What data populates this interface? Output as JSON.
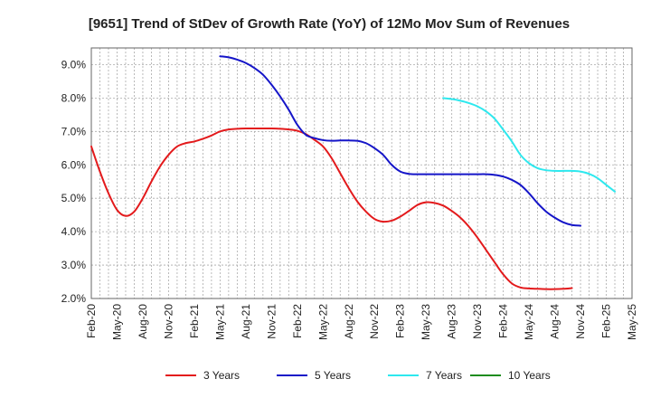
{
  "chart_data": {
    "type": "line",
    "title": "[9651]  Trend of StDev of Growth Rate (YoY) of 12Mo Mov Sum of Revenues",
    "xlabel": "",
    "ylabel": "",
    "ylim": [
      2.0,
      9.5
    ],
    "y_ticks": [
      "2.0%",
      "3.0%",
      "4.0%",
      "5.0%",
      "6.0%",
      "7.0%",
      "8.0%",
      "9.0%"
    ],
    "y_tick_values": [
      2,
      3,
      4,
      5,
      6,
      7,
      8,
      9
    ],
    "x_tick_labels": [
      "Feb-20",
      "May-20",
      "Aug-20",
      "Nov-20",
      "Feb-21",
      "May-21",
      "Aug-21",
      "Nov-21",
      "Feb-22",
      "May-22",
      "Aug-22",
      "Nov-22",
      "Feb-23",
      "May-23",
      "Aug-23",
      "Nov-23",
      "Feb-24",
      "May-24",
      "Aug-24",
      "Nov-24",
      "Feb-25",
      "May-25"
    ],
    "x_range": [
      0,
      63
    ],
    "grid": true,
    "legend_position": "bottom",
    "series": [
      {
        "name": "3 Years",
        "color": "#e31a1c",
        "start_index": 0,
        "values": [
          6.55,
          5.8,
          5.15,
          4.65,
          4.47,
          4.6,
          5.0,
          5.5,
          5.95,
          6.3,
          6.55,
          6.65,
          6.7,
          6.78,
          6.88,
          7.0,
          7.06,
          7.08,
          7.09,
          7.09,
          7.09,
          7.09,
          7.08,
          7.06,
          7.02,
          6.92,
          6.75,
          6.55,
          6.2,
          5.75,
          5.3,
          4.9,
          4.6,
          4.38,
          4.3,
          4.33,
          4.45,
          4.62,
          4.8,
          4.88,
          4.86,
          4.78,
          4.62,
          4.42,
          4.15,
          3.82,
          3.45,
          3.08,
          2.72,
          2.45,
          2.33,
          2.3,
          2.29,
          2.28,
          2.28,
          2.29,
          2.31
        ]
      },
      {
        "name": "5 Years",
        "color": "#1515c8",
        "start_index": 15,
        "values": [
          9.25,
          9.22,
          9.15,
          9.05,
          8.9,
          8.7,
          8.4,
          8.05,
          7.65,
          7.2,
          6.9,
          6.8,
          6.74,
          6.72,
          6.73,
          6.73,
          6.72,
          6.65,
          6.5,
          6.3,
          6.0,
          5.8,
          5.73,
          5.72,
          5.72,
          5.72,
          5.72,
          5.72,
          5.72,
          5.72,
          5.72,
          5.72,
          5.7,
          5.65,
          5.55,
          5.4,
          5.15,
          4.85,
          4.6,
          4.42,
          4.28,
          4.2,
          4.18
        ]
      },
      {
        "name": "7 Years",
        "color": "#2ee8ee",
        "start_index": 41,
        "values": [
          8.0,
          7.97,
          7.92,
          7.85,
          7.75,
          7.6,
          7.38,
          7.05,
          6.7,
          6.3,
          6.05,
          5.9,
          5.84,
          5.82,
          5.82,
          5.82,
          5.8,
          5.73,
          5.6,
          5.4,
          5.2
        ]
      },
      {
        "name": "10 Years",
        "color": "#1e8c1e",
        "start_index": 0,
        "values": []
      }
    ]
  }
}
